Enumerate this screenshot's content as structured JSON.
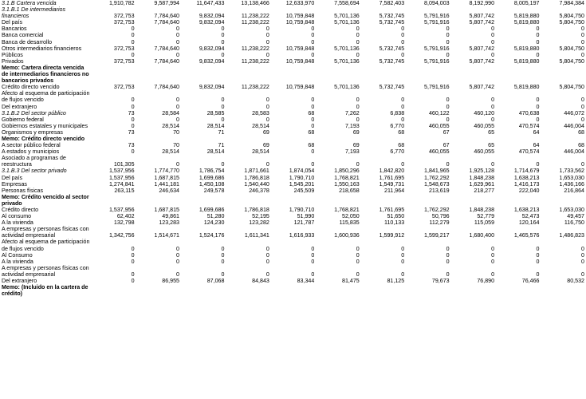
{
  "rows": [
    {
      "label": "3.1.B Cartera vencida",
      "style": "it",
      "values": [
        "1,910,782",
        "9,587,994",
        "11,647,433",
        "13,138,466",
        "12,633,970",
        "7,558,694",
        "7,582,403",
        "8,094,003",
        "8,192,990",
        "8,005,197",
        "7,984,384"
      ]
    },
    {
      "label": "3.1.B.1 De intermediarios financieros",
      "style": "it",
      "values": [
        "372,753",
        "7,784,640",
        "9,832,094",
        "11,238,222",
        "10,759,848",
        "5,701,136",
        "5,732,745",
        "5,791,916",
        "5,807,742",
        "5,819,880",
        "5,804,750"
      ]
    },
    {
      "label": "Del país",
      "style": "",
      "values": [
        "372,753",
        "7,784,640",
        "9,832,094",
        "11,238,222",
        "10,759,848",
        "5,701,136",
        "5,732,745",
        "5,791,916",
        "5,807,742",
        "5,819,880",
        "5,804,750"
      ]
    },
    {
      "label": "Bancarios",
      "style": "",
      "values": [
        "0",
        "0",
        "0",
        "0",
        "0",
        "0",
        "0",
        "0",
        "0",
        "0",
        "0"
      ]
    },
    {
      "label": "Banca comercial",
      "style": "",
      "values": [
        "0",
        "0",
        "0",
        "0",
        "0",
        "0",
        "0",
        "0",
        "0",
        "0",
        "0"
      ]
    },
    {
      "label": "Banca de desarrollo",
      "style": "",
      "values": [
        "0",
        "0",
        "0",
        "0",
        "0",
        "0",
        "0",
        "0",
        "0",
        "0",
        "0"
      ]
    },
    {
      "label": "Otros intermediarios financieros",
      "style": "",
      "values": [
        "372,753",
        "7,784,640",
        "9,832,094",
        "11,238,222",
        "10,759,848",
        "5,701,136",
        "5,732,745",
        "5,791,916",
        "5,807,742",
        "5,819,880",
        "5,804,750"
      ]
    },
    {
      "label": "Públicos",
      "style": "",
      "values": [
        "0",
        "0",
        "0",
        "0",
        "0",
        "0",
        "0",
        "0",
        "0",
        "0",
        "0"
      ]
    },
    {
      "label": "Privados",
      "style": "",
      "values": [
        "372,753",
        "7,784,640",
        "9,832,094",
        "11,238,222",
        "10,759,848",
        "5,701,136",
        "5,732,745",
        "5,791,916",
        "5,807,742",
        "5,819,880",
        "5,804,750"
      ]
    },
    {
      "label": "Memo: Cartera directa vencida de intermediarios financieros no bancarios privados",
      "style": "b",
      "values": [
        "",
        "",
        "",
        "",
        "",
        "",
        "",
        "",
        "",
        "",
        ""
      ]
    },
    {
      "label": "Crédito directo vencido",
      "style": "",
      "values": [
        "372,753",
        "7,784,640",
        "9,832,094",
        "11,238,222",
        "10,759,848",
        "5,701,136",
        "5,732,745",
        "5,791,916",
        "5,807,742",
        "5,819,880",
        "5,804,750"
      ]
    },
    {
      "label": "Afecto al esquema de participación de flujos vencido",
      "style": "",
      "values": [
        "0",
        "0",
        "0",
        "0",
        "0",
        "0",
        "0",
        "0",
        "0",
        "0",
        "0"
      ]
    },
    {
      "label": "Del extranjero",
      "style": "",
      "values": [
        "0",
        "0",
        "0",
        "0",
        "0",
        "0",
        "0",
        "0",
        "0",
        "0",
        "0"
      ]
    },
    {
      "label": "3.1.B.2 Del sector público",
      "style": "it",
      "values": [
        "73",
        "28,584",
        "28,585",
        "28,583",
        "68",
        "7,262",
        "6,838",
        "460,122",
        "460,120",
        "470,638",
        "446,072"
      ]
    },
    {
      "label": "Gobierno federal",
      "style": "",
      "values": [
        "0",
        "0",
        "0",
        "0",
        "0",
        "0",
        "0",
        "0",
        "0",
        "0",
        "0"
      ]
    },
    {
      "label": "Gobiernos estatales y municipales",
      "style": "",
      "values": [
        "0",
        "28,514",
        "28,514",
        "28,514",
        "0",
        "7,193",
        "6,770",
        "460,055",
        "460,055",
        "470,574",
        "446,004"
      ]
    },
    {
      "label": "Organismos y empresas",
      "style": "",
      "values": [
        "73",
        "70",
        "71",
        "69",
        "68",
        "69",
        "68",
        "67",
        "65",
        "64",
        "68"
      ]
    },
    {
      "label": "Memo: Crédito directo vencido",
      "style": "b",
      "values": [
        "",
        "",
        "",
        "",
        "",
        "",
        "",
        "",
        "",
        "",
        ""
      ]
    },
    {
      "label": "A sector público federal",
      "style": "",
      "values": [
        "73",
        "70",
        "71",
        "69",
        "68",
        "69",
        "68",
        "67",
        "65",
        "64",
        "68"
      ]
    },
    {
      "label": "A estados y municipios",
      "style": "",
      "values": [
        "0",
        "28,514",
        "28,514",
        "28,514",
        "0",
        "7,193",
        "6,770",
        "460,055",
        "460,055",
        "470,574",
        "446,004"
      ]
    },
    {
      "label": "Asociado a programas de reestructura",
      "style": "",
      "values": [
        "101,305",
        "0",
        "0",
        "0",
        "0",
        "0",
        "0",
        "0",
        "0",
        "0",
        "0"
      ]
    },
    {
      "label": "3.1.B.3 Del sector privado",
      "style": "it",
      "values": [
        "1,537,956",
        "1,774,770",
        "1,786,754",
        "1,871,661",
        "1,874,054",
        "1,850,296",
        "1,842,820",
        "1,841,965",
        "1,925,128",
        "1,714,679",
        "1,733,562"
      ]
    },
    {
      "label": "Del país",
      "style": "",
      "values": [
        "1,537,956",
        "1,687,815",
        "1,699,686",
        "1,786,818",
        "1,790,710",
        "1,768,821",
        "1,761,695",
        "1,762,292",
        "1,848,238",
        "1,638,213",
        "1,653,030"
      ]
    },
    {
      "label": "Empresas",
      "style": "",
      "values": [
        "1,274,841",
        "1,441,181",
        "1,450,108",
        "1,540,440",
        "1,545,201",
        "1,550,163",
        "1,549,731",
        "1,548,673",
        "1,629,961",
        "1,416,173",
        "1,436,166"
      ]
    },
    {
      "label": "Personas físicas",
      "style": "",
      "values": [
        "263,115",
        "246,634",
        "249,578",
        "246,378",
        "245,509",
        "218,658",
        "211,964",
        "213,619",
        "218,277",
        "222,040",
        "216,864"
      ]
    },
    {
      "label": "Memo: Crédito vencido al sector privado",
      "style": "b",
      "values": [
        "",
        "",
        "",
        "",
        "",
        "",
        "",
        "",
        "",
        "",
        ""
      ]
    },
    {
      "label": "Crédito directo",
      "style": "",
      "values": [
        "1,537,956",
        "1,687,815",
        "1,699,686",
        "1,786,818",
        "1,790,710",
        "1,768,821",
        "1,761,695",
        "1,762,292",
        "1,848,238",
        "1,638,213",
        "1,653,030"
      ]
    },
    {
      "label": "Al consumo",
      "style": "",
      "values": [
        "62,402",
        "49,861",
        "51,280",
        "52,195",
        "51,990",
        "52,050",
        "51,650",
        "50,796",
        "52,779",
        "52,473",
        "49,457"
      ]
    },
    {
      "label": "A la vivienda",
      "style": "",
      "values": [
        "132,798",
        "123,283",
        "124,230",
        "123,282",
        "121,787",
        "115,835",
        "110,133",
        "112,279",
        "115,059",
        "120,164",
        "116,750"
      ]
    },
    {
      "label": "A empresas y personas físicas con actividad empresarial",
      "style": "",
      "values": [
        "1,342,756",
        "1,514,671",
        "1,524,176",
        "1,611,341",
        "1,616,933",
        "1,600,936",
        "1,599,912",
        "1,599,217",
        "1,680,400",
        "1,465,576",
        "1,486,823"
      ]
    },
    {
      "label": "Afecto al esquema de participación de flujos vencido",
      "style": "",
      "values": [
        "0",
        "0",
        "0",
        "0",
        "0",
        "0",
        "0",
        "0",
        "0",
        "0",
        "0"
      ]
    },
    {
      "label": "Al Consumo",
      "style": "",
      "values": [
        "0",
        "0",
        "0",
        "0",
        "0",
        "0",
        "0",
        "0",
        "0",
        "0",
        "0"
      ]
    },
    {
      "label": "A la vivienda",
      "style": "",
      "values": [
        "0",
        "0",
        "0",
        "0",
        "0",
        "0",
        "0",
        "0",
        "0",
        "0",
        "0"
      ]
    },
    {
      "label": "A empresas y personas físicas con actividad empresarial",
      "style": "",
      "values": [
        "0",
        "0",
        "0",
        "0",
        "0",
        "0",
        "0",
        "0",
        "0",
        "0",
        "0"
      ]
    },
    {
      "label": "Del extranjero",
      "style": "",
      "values": [
        "0",
        "86,955",
        "87,068",
        "84,843",
        "83,344",
        "81,475",
        "81,125",
        "79,673",
        "76,890",
        "76,466",
        "80,532"
      ]
    },
    {
      "label": "Memo: (Incluido en la cartera de crédito)",
      "style": "b",
      "values": [
        "",
        "",
        "",
        "",
        "",
        "",
        "",
        "",
        "",
        "",
        ""
      ]
    }
  ]
}
